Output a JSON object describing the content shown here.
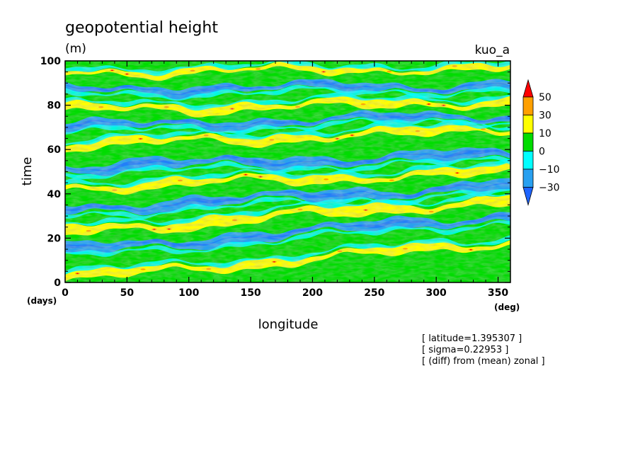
{
  "figure": {
    "title": "geopotential height",
    "units": "(m)",
    "run_label": "kuo_a"
  },
  "annotations": [
    "[ latitude=1.395307 ]",
    "[ sigma=0.22953 ]",
    "[ (diff) from (mean) zonal ]"
  ],
  "chart_data": {
    "type": "heatmap",
    "title": "geopotential height",
    "subtitle": "(m)",
    "xlabel": "longitude",
    "ylabel": "time",
    "x_unit": "(deg)",
    "y_unit": "(days)",
    "xlim": [
      0,
      360
    ],
    "ylim": [
      0,
      100
    ],
    "x_ticks": [
      0,
      50,
      100,
      150,
      200,
      250,
      300,
      350
    ],
    "y_ticks": [
      0,
      20,
      40,
      60,
      80,
      100
    ],
    "colorbar": {
      "levels": [
        -30,
        -10,
        0,
        10,
        30,
        50
      ],
      "tick_labels": [
        "−30",
        "−10",
        "0",
        "10",
        "30",
        "50"
      ],
      "colors": [
        "#1e64ff",
        "#28a0f0",
        "#00ffff",
        "#00dc00",
        "#ffff00",
        "#ffa000",
        "#ff0000"
      ],
      "extend": "both"
    },
    "bands": [
      {
        "slope": 0.045,
        "intercept": 2,
        "width": 4,
        "level": "10"
      },
      {
        "slope": 0.045,
        "intercept": 14,
        "width": 5,
        "level": "-10"
      },
      {
        "slope": 0.04,
        "intercept": 23,
        "width": 5,
        "level": "10"
      },
      {
        "slope": 0.03,
        "intercept": 33,
        "width": 5,
        "level": "-10"
      },
      {
        "slope": 0.02,
        "intercept": 43,
        "width": 4,
        "level": "10"
      },
      {
        "slope": 0.015,
        "intercept": 52,
        "width": 5,
        "level": "-10"
      },
      {
        "slope": 0.02,
        "intercept": 62,
        "width": 4,
        "level": "10"
      },
      {
        "slope": 0.015,
        "intercept": 70,
        "width": 4,
        "level": "-10"
      },
      {
        "slope": 0.01,
        "intercept": 78,
        "width": 4,
        "level": "10"
      },
      {
        "slope": 0.005,
        "intercept": 87,
        "width": 4,
        "level": "-10"
      },
      {
        "slope": 0.005,
        "intercept": 95,
        "width": 3,
        "level": "10"
      }
    ]
  }
}
